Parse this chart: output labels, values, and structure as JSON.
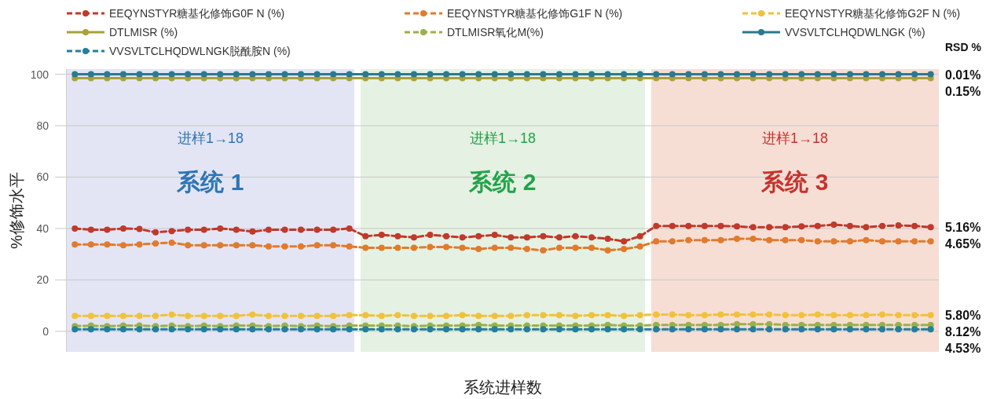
{
  "chart_data": {
    "type": "line",
    "ylabel": "%修饰水平",
    "xlabel": "系统进样数",
    "categories": [
      null,
      null,
      null,
      null,
      null,
      null,
      null,
      null,
      null,
      null,
      null,
      null,
      null,
      null,
      null,
      null,
      null,
      null,
      null,
      null,
      null,
      null,
      null,
      null,
      null,
      null,
      null,
      null,
      null,
      null,
      null,
      null,
      null,
      null,
      null,
      null,
      null,
      null,
      null,
      null,
      null,
      null,
      null,
      null,
      null,
      null,
      null,
      null,
      null,
      null,
      null,
      null,
      null,
      null
    ],
    "ylim": [
      -8,
      102
    ],
    "yticks": [
      0,
      20,
      40,
      60,
      80,
      100
    ],
    "tick_labels": "y",
    "grid": "y",
    "legend": "top",
    "marker": "circle",
    "series": [
      {
        "name": "EEQYNSTYR糖基化修饰G0F N (%)",
        "color": "#c0392b",
        "line_style": "dashed",
        "values": [
          40,
          39.5,
          39.5,
          40,
          39.8,
          38.5,
          39,
          39.5,
          39.5,
          40,
          39.5,
          38.8,
          39.5,
          39.5,
          39.5,
          39.5,
          39.5,
          40,
          37,
          37.5,
          37,
          36.5,
          37.5,
          37,
          36.5,
          37,
          37.5,
          36.5,
          36.5,
          37,
          36.5,
          37,
          36.5,
          36,
          35,
          37,
          41,
          41,
          41,
          41,
          41,
          40.8,
          40.5,
          40.5,
          40.5,
          40.8,
          41,
          41.5,
          41,
          40.5,
          41,
          41.2,
          41,
          40.5
        ]
      },
      {
        "name": "EEQYNSTYR糖基化修饰G1F N (%)",
        "color": "#e07b2e",
        "line_style": "dashed",
        "values": [
          33.8,
          33.8,
          33.8,
          33.5,
          33.8,
          34.2,
          34.5,
          33.5,
          33.5,
          33.5,
          33.5,
          33.5,
          33,
          33,
          33,
          33.5,
          33.5,
          33,
          32.5,
          32.5,
          32.5,
          32.5,
          32.8,
          32.8,
          32.5,
          32,
          32.5,
          32.5,
          32,
          31.5,
          32.5,
          32.5,
          32.5,
          31.5,
          32,
          33,
          35,
          35,
          35.5,
          35.5,
          35.5,
          36,
          36,
          35.5,
          35.5,
          35.5,
          35,
          35,
          35,
          35.5,
          35,
          35,
          35,
          35
        ]
      },
      {
        "name": "EEQYNSTYR糖基化修饰G2F N (%)",
        "color": "#f0c23c",
        "line_style": "dashed",
        "values": [
          6,
          6,
          6,
          6,
          6,
          6,
          6.5,
          6,
          6,
          6,
          6,
          6.5,
          6,
          6,
          6,
          6,
          6,
          6.3,
          6.3,
          6,
          6.3,
          6,
          6,
          6,
          6.3,
          6,
          6,
          6,
          6.3,
          6.3,
          6.3,
          6,
          6.3,
          6.3,
          6,
          6.3,
          6.5,
          6.5,
          6.3,
          6.3,
          6.5,
          6.5,
          6.5,
          6.5,
          6.3,
          6.3,
          6.5,
          6.3,
          6.3,
          6.3,
          6.5,
          6.3,
          6.3,
          6.3
        ]
      },
      {
        "name": "DTLMISR (%)",
        "color": "#a8a23a",
        "line_style": "solid",
        "values": [
          98.5,
          98.5,
          98.5,
          98.5,
          98.5,
          98.5,
          98.5,
          98.5,
          98.5,
          98.5,
          98.5,
          98.5,
          98.5,
          98.5,
          98.5,
          98.5,
          98.5,
          98.5,
          98.5,
          98.5,
          98.5,
          98.5,
          98.5,
          98.5,
          98.5,
          98.5,
          98.5,
          98.5,
          98.5,
          98.5,
          98.5,
          98.5,
          98.5,
          98.5,
          98.5,
          98.5,
          98.5,
          98.5,
          98.5,
          98.5,
          98.5,
          98.5,
          98.5,
          98.5,
          98.5,
          98.5,
          98.5,
          98.5,
          98.5,
          98.5,
          98.5,
          98.5,
          98.5,
          98.5
        ]
      },
      {
        "name": "DTLMISR氧化M(%)",
        "color": "#9bb04a",
        "line_style": "dashed",
        "values": [
          2,
          2.2,
          2,
          2.2,
          2.2,
          2,
          2.2,
          2,
          2.2,
          2,
          2.2,
          2.2,
          2,
          2.2,
          2,
          2.2,
          2,
          2.2,
          2.2,
          2.2,
          2.2,
          2,
          2.2,
          2.2,
          2.2,
          2.5,
          2.2,
          2.2,
          2.2,
          2.2,
          2.2,
          2.2,
          2.2,
          2.5,
          2.2,
          2.2,
          2.5,
          2.5,
          2.5,
          2.5,
          2.5,
          2.8,
          2.8,
          2.8,
          2.5,
          2.5,
          2.5,
          2.5,
          2.5,
          2.5,
          2.5,
          2.5,
          2.5,
          2.5
        ]
      },
      {
        "name": "VVSVLTCLHQDWLNGK (%)",
        "color": "#2b7a8e",
        "line_style": "solid",
        "values": [
          100,
          100,
          100,
          100,
          100,
          100,
          100,
          100,
          100,
          100,
          100,
          100,
          100,
          100,
          100,
          100,
          100,
          100,
          100,
          100,
          100,
          100,
          100,
          100,
          100,
          100,
          100,
          100,
          100,
          100,
          100,
          100,
          100,
          100,
          100,
          100,
          100,
          100,
          100,
          100,
          100,
          100,
          100,
          100,
          100,
          100,
          100,
          100,
          100,
          100,
          100,
          100,
          100,
          100
        ]
      },
      {
        "name": "VVSVLTCLHQDWLNGK脱酰胺N (%)",
        "color": "#237f9c",
        "line_style": "dashed",
        "values": [
          0.8,
          0.8,
          0.8,
          0.8,
          0.8,
          0.8,
          0.8,
          0.8,
          0.8,
          0.8,
          0.8,
          0.8,
          0.8,
          0.8,
          0.8,
          0.8,
          0.8,
          0.8,
          0.8,
          0.8,
          0.8,
          0.8,
          0.8,
          0.8,
          0.8,
          0.8,
          0.8,
          0.8,
          0.8,
          0.8,
          0.8,
          0.8,
          0.8,
          0.8,
          0.8,
          0.8,
          0.8,
          0.8,
          0.8,
          0.8,
          0.8,
          0.8,
          0.8,
          0.8,
          0.8,
          0.8,
          0.8,
          0.8,
          0.8,
          0.8,
          0.8,
          0.8,
          0.8,
          0.8
        ]
      }
    ],
    "annotations": [
      "进样1→18",
      "进样1→18",
      "进样1→18",
      "系统 1",
      "系统 2",
      "系统 3",
      "RSD %",
      "0.01%",
      "0.15%",
      "5.16%",
      "4.65%",
      "5.80%",
      "8.12%",
      "4.53%"
    ]
  }
}
